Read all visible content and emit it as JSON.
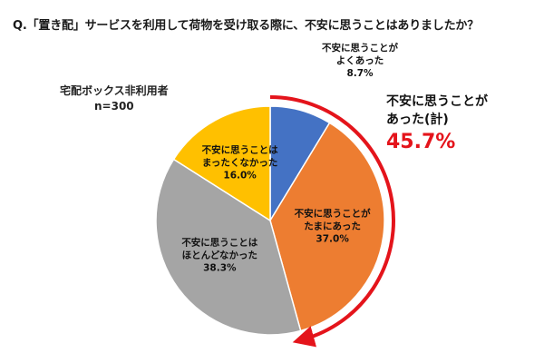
{
  "question": "Q.「置き配」サービスを利用して荷物を受け取る際に、不安に思うことはありましたか？",
  "respondent": {
    "group": "宅配ボックス非利用者",
    "n": "n=300"
  },
  "callout": {
    "line1": "不安に思うことが",
    "line2": "あった(計)",
    "value": "45.7%"
  },
  "colors": {
    "accent": "#e4141b"
  },
  "chart_data": {
    "type": "pie",
    "categories": [
      "不安に思うことがよくあった",
      "不安に思うことがたまにあった",
      "不安に思うことはほとんどなかった",
      "不安に思うことはまったくなかった"
    ],
    "values": [
      8.7,
      37.0,
      38.3,
      16.0
    ],
    "colors": [
      "#4472c4",
      "#ed7d31",
      "#a5a5a5",
      "#ffc000"
    ],
    "slices": [
      {
        "line1": "不安に思うことが",
        "line2": "よくあった",
        "value_label": "8.7%"
      },
      {
        "line1": "不安に思うことが",
        "line2": "たまにあった",
        "value_label": "37.0%"
      },
      {
        "line1": "不安に思うことは",
        "line2": "ほとんどなかった",
        "value_label": "38.3%"
      },
      {
        "line1": "不安に思うことは",
        "line2": "まったくなかった",
        "value_label": "16.0%"
      }
    ],
    "start": "12 o'clock",
    "direction": "clockwise"
  }
}
